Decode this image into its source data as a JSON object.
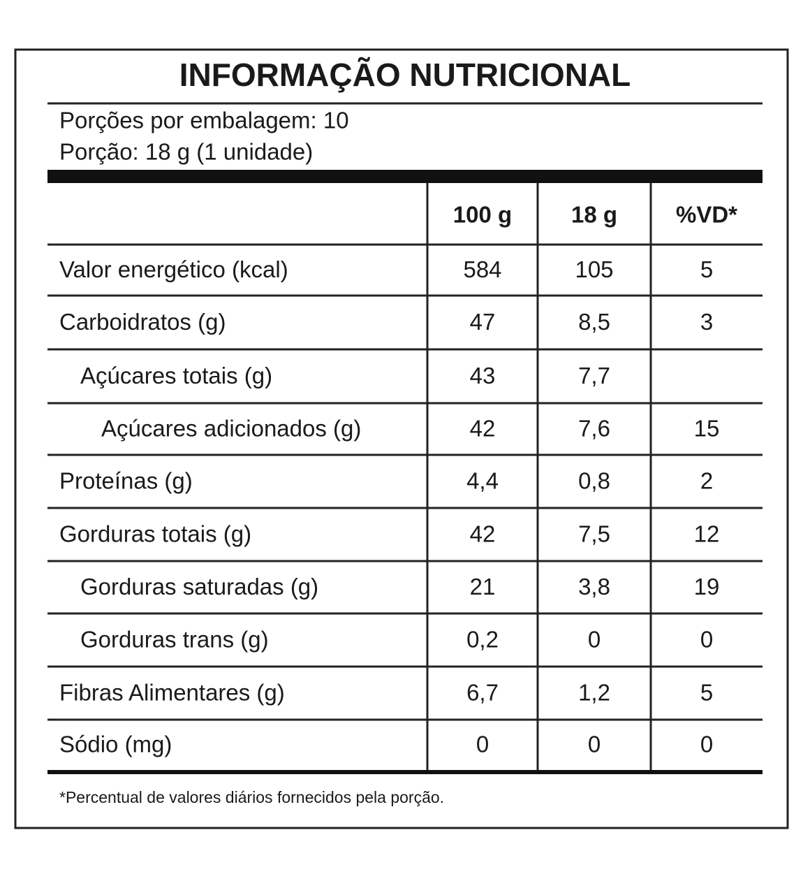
{
  "title": "INFORMAÇÃO NUTRICIONAL",
  "servings": [
    "Porções por embalagem: 10",
    "Porção: 18 g (1 unidade)"
  ],
  "table": {
    "header": [
      "100 g",
      "18 g",
      "%VD*"
    ],
    "rows": [
      [
        "Valor energético (kcal)",
        "584",
        "105",
        "5"
      ],
      [
        "Carboidratos (g)",
        "47",
        "8,5",
        "3"
      ],
      [
        "Açúcares totais (g)",
        "43",
        "7,7",
        null
      ],
      [
        "Açúcares adicionados (g)",
        "42",
        "7,6",
        "15"
      ],
      [
        "Proteínas (g)",
        "4,4",
        "0,8",
        "2"
      ],
      [
        "Gorduras totais (g)",
        "42",
        "7,5",
        "12"
      ],
      [
        "Gorduras saturadas (g)",
        "21",
        "3,8",
        "19"
      ],
      [
        "Gorduras trans (g)",
        "0,2",
        "0",
        "0"
      ],
      [
        "Fibras Alimentares (g)",
        "6,7",
        "1,2",
        "5"
      ],
      [
        "Sódio (mg)",
        "0",
        "0",
        "0"
      ]
    ]
  },
  "footnote": "*Percentual de valores diários fornecidos pela porção."
}
